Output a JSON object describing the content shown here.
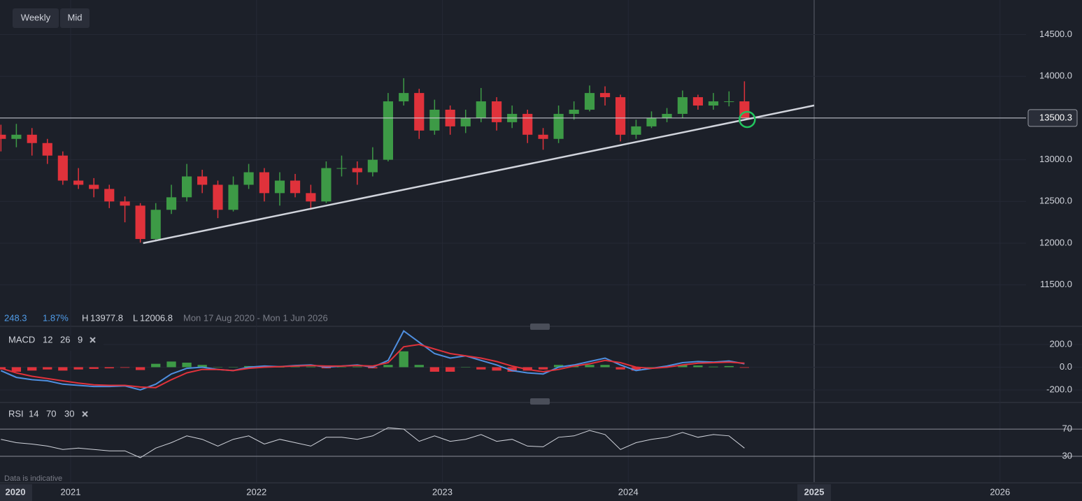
{
  "toolbar": {
    "interval": "Weekly",
    "price_type": "Mid"
  },
  "info": {
    "change": 248.3,
    "change_pct": "1.87%",
    "high_label": "H",
    "high": 13977.8,
    "low_label": "L",
    "low": 12006.8,
    "range": "Mon 17 Aug 2020 - Mon 1 Jun 2026"
  },
  "footer": "Data is indicative",
  "x_start_label": "2020",
  "chart_data": [
    {
      "type": "candlestick",
      "x": [
        2020.625,
        2020.708,
        2020.792,
        2020.875,
        2020.958,
        2021.042,
        2021.125,
        2021.208,
        2021.292,
        2021.375,
        2021.458,
        2021.542,
        2021.625,
        2021.708,
        2021.792,
        2021.875,
        2021.958,
        2022.042,
        2022.125,
        2022.208,
        2022.292,
        2022.375,
        2022.458,
        2022.542,
        2022.625,
        2022.708,
        2022.792,
        2022.875,
        2022.958,
        2023.042,
        2023.125,
        2023.208,
        2023.292,
        2023.375,
        2023.458,
        2023.542,
        2023.625,
        2023.708,
        2023.792,
        2023.875,
        2023.958,
        2024.042,
        2024.125,
        2024.208,
        2024.292,
        2024.375,
        2024.458,
        2024.542,
        2024.625
      ],
      "open": [
        13300,
        13250,
        13300,
        13200,
        13050,
        12750,
        12700,
        12650,
        12500,
        12450,
        12050,
        12400,
        12550,
        12800,
        12700,
        12400,
        12700,
        12850,
        12600,
        12750,
        12600,
        12500,
        12900,
        12900,
        12850,
        13000,
        13700,
        13800,
        13350,
        13600,
        13400,
        13500,
        13700,
        13450,
        13550,
        13300,
        13250,
        13550,
        13600,
        13800,
        13750,
        13300,
        13400,
        13500,
        13550,
        13750,
        13650,
        13700,
        13700
      ],
      "high": [
        13420,
        13430,
        13380,
        13250,
        13100,
        12900,
        12780,
        12700,
        12560,
        12480,
        12480,
        12700,
        12950,
        12880,
        12750,
        12800,
        12950,
        12900,
        12850,
        12830,
        12700,
        12980,
        13050,
        12980,
        13150,
        13800,
        13978,
        13850,
        13720,
        13650,
        13600,
        13860,
        13750,
        13650,
        13600,
        13380,
        13650,
        13700,
        13890,
        13880,
        13780,
        13480,
        13580,
        13620,
        13830,
        13780,
        13800,
        13820,
        13940
      ],
      "low": [
        13100,
        13150,
        13050,
        12950,
        12700,
        12650,
        12550,
        12420,
        12250,
        12007,
        12020,
        12350,
        12500,
        12600,
        12300,
        12380,
        12650,
        12500,
        12450,
        12550,
        12400,
        12480,
        12800,
        12700,
        12800,
        12980,
        13650,
        13250,
        13300,
        13300,
        13320,
        13450,
        13350,
        13380,
        13200,
        13120,
        13200,
        13480,
        13580,
        13650,
        13220,
        13250,
        13380,
        13450,
        13500,
        13600,
        13600,
        13640,
        13500
      ],
      "close": [
        13250,
        13300,
        13200,
        13050,
        12750,
        12700,
        12650,
        12500,
        12450,
        12050,
        12400,
        12550,
        12800,
        12700,
        12400,
        12700,
        12850,
        12600,
        12750,
        12600,
        12500,
        12900,
        12900,
        12850,
        13000,
        13700,
        13800,
        13350,
        13600,
        13400,
        13500,
        13700,
        13450,
        13550,
        13300,
        13250,
        13550,
        13600,
        13800,
        13750,
        13300,
        13400,
        13500,
        13550,
        13750,
        13650,
        13700,
        13700,
        13500
      ],
      "up_color": "#3d9a46",
      "down_color": "#e0323b",
      "xlim": [
        2020.62,
        2026.14
      ],
      "ylim": [
        11020,
        14915
      ],
      "xticks": [
        2021,
        2022,
        2023,
        2024,
        2025,
        2026
      ],
      "yticks": [
        {
          "value": 11500,
          "label": "11500.0"
        },
        {
          "value": 12000,
          "label": "12000.0"
        },
        {
          "value": 12500,
          "label": "12500.0"
        },
        {
          "value": 13000,
          "label": "13000.0"
        },
        {
          "value": 13500,
          "label": "13500.0"
        },
        {
          "value": 14000,
          "label": "14000.0"
        },
        {
          "value": 14500,
          "label": "14500.0"
        }
      ],
      "grid": true,
      "crosshair_x": 2025,
      "last_price": 13500.3,
      "trendline": {
        "color": "#d1d4dc",
        "x": [
          2021.39,
          2025
        ],
        "y": [
          12000,
          13651
        ]
      },
      "highlight": {
        "color": "#22c55e",
        "x": 2024.64,
        "y": 13483
      }
    },
    {
      "type": "macd",
      "title": "MACD",
      "params": [
        12,
        26,
        9
      ],
      "ylim": [
        -305,
        342
      ],
      "yticks": [
        {
          "value": -200,
          "label": "-200.0"
        },
        {
          "value": 0,
          "label": "0.0"
        },
        {
          "value": 200,
          "label": "200.0"
        }
      ],
      "series": [
        {
          "color": "#4f8fe0",
          "values": [
            -30,
            -90,
            -110,
            -120,
            -150,
            -160,
            -170,
            -170,
            -165,
            -200,
            -150,
            -60,
            -10,
            0,
            -20,
            -30,
            0,
            10,
            5,
            15,
            20,
            0,
            10,
            20,
            0,
            60,
            320,
            220,
            120,
            80,
            100,
            60,
            20,
            -30,
            -50,
            -60,
            0,
            20,
            50,
            80,
            20,
            -30,
            -10,
            10,
            40,
            50,
            45,
            55,
            30
          ]
        },
        {
          "color": "#e0323b",
          "values": [
            -10,
            -50,
            -80,
            -100,
            -120,
            -140,
            -155,
            -160,
            -160,
            -175,
            -180,
            -110,
            -50,
            -20,
            -20,
            -30,
            -10,
            0,
            5,
            10,
            15,
            10,
            10,
            15,
            10,
            40,
            180,
            200,
            160,
            120,
            100,
            80,
            50,
            10,
            -20,
            -40,
            -20,
            10,
            30,
            60,
            40,
            0,
            -10,
            0,
            20,
            35,
            40,
            45,
            35
          ]
        }
      ],
      "histogram": {
        "up_color": "#3d9a46",
        "down_color": "#e0323b",
        "values": [
          -20,
          -40,
          -30,
          -20,
          -30,
          -20,
          -15,
          -10,
          -5,
          -25,
          30,
          50,
          40,
          20,
          0,
          0,
          10,
          10,
          0,
          5,
          5,
          -10,
          0,
          5,
          -10,
          20,
          140,
          20,
          -40,
          -40,
          0,
          -20,
          -30,
          -40,
          -30,
          -20,
          20,
          10,
          20,
          20,
          -20,
          -30,
          0,
          10,
          20,
          15,
          5,
          10,
          -5
        ]
      }
    },
    {
      "type": "line",
      "title": "RSI",
      "params": [
        14,
        70,
        30
      ],
      "color": "#d1d4dc",
      "ylim": [
        -8,
        105
      ],
      "yticks": [
        30,
        70
      ],
      "values": [
        55,
        50,
        48,
        45,
        40,
        42,
        40,
        38,
        38,
        28,
        42,
        50,
        60,
        55,
        45,
        55,
        60,
        48,
        55,
        50,
        45,
        58,
        58,
        55,
        60,
        72,
        70,
        52,
        60,
        52,
        55,
        62,
        52,
        55,
        45,
        44,
        58,
        60,
        68,
        62,
        40,
        50,
        55,
        58,
        65,
        58,
        62,
        60,
        42
      ]
    }
  ]
}
